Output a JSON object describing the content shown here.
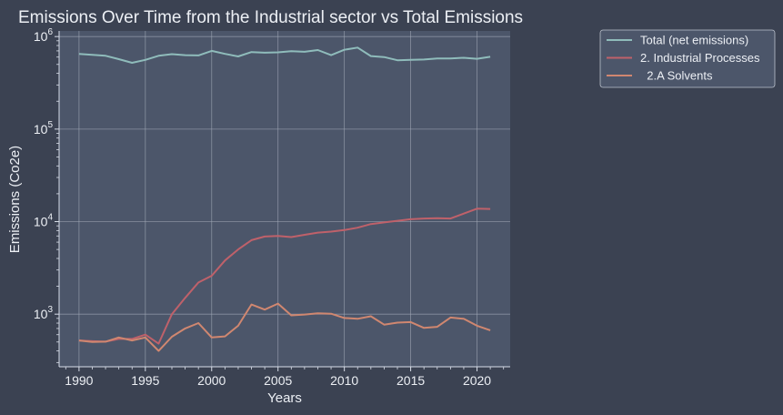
{
  "chart_data": {
    "type": "line",
    "title": "Emissions Over Time from the Industrial sector vs Total Emissions",
    "xlabel": "Years",
    "ylabel": "Emissions (Co2e)",
    "yscale": "log",
    "xlim": [
      1988.5,
      2022.5
    ],
    "ylim": [
      270,
      1150000
    ],
    "xticks": [
      1990,
      1995,
      2000,
      2005,
      2010,
      2015,
      2020
    ],
    "yticks": [
      {
        "value": 1000,
        "base": "10",
        "exp": "3"
      },
      {
        "value": 10000,
        "base": "10",
        "exp": "4"
      },
      {
        "value": 100000,
        "base": "10",
        "exp": "5"
      },
      {
        "value": 1000000,
        "base": "10",
        "exp": "6"
      }
    ],
    "grid": true,
    "legend_position": "outside-top-right",
    "background": "#4c566a",
    "x": [
      1990,
      1991,
      1992,
      1993,
      1994,
      1995,
      1996,
      1997,
      1998,
      1999,
      2000,
      2001,
      2002,
      2003,
      2004,
      2005,
      2006,
      2007,
      2008,
      2009,
      2010,
      2011,
      2012,
      2013,
      2014,
      2015,
      2016,
      2017,
      2018,
      2019,
      2020,
      2021
    ],
    "series": [
      {
        "name": "Total (net emissions)",
        "color": "#8fbcbb",
        "values": [
          650000,
          635000,
          620000,
          570000,
          520000,
          560000,
          620000,
          645000,
          630000,
          625000,
          700000,
          650000,
          610000,
          680000,
          670000,
          675000,
          695000,
          685000,
          715000,
          630000,
          720000,
          760000,
          615000,
          600000,
          555000,
          560000,
          565000,
          580000,
          580000,
          590000,
          575000,
          605000
        ]
      },
      {
        "name": "2. Industrial Processes",
        "color": "#bf616a",
        "values": [
          520,
          510,
          505,
          540,
          540,
          600,
          480,
          1000,
          1500,
          2200,
          2600,
          3800,
          5000,
          6300,
          6900,
          7000,
          6800,
          7200,
          7600,
          7800,
          8100,
          8600,
          9400,
          9800,
          10200,
          10600,
          10800,
          10900,
          10800,
          12200,
          13800,
          13700
        ]
      },
      {
        "name": "  2.A Solvents",
        "color": "#d08770",
        "values": [
          520,
          500,
          505,
          560,
          520,
          560,
          400,
          570,
          700,
          800,
          560,
          575,
          750,
          1270,
          1120,
          1300,
          970,
          990,
          1020,
          1010,
          910,
          890,
          950,
          770,
          810,
          820,
          710,
          730,
          920,
          890,
          750,
          670
        ]
      }
    ]
  }
}
